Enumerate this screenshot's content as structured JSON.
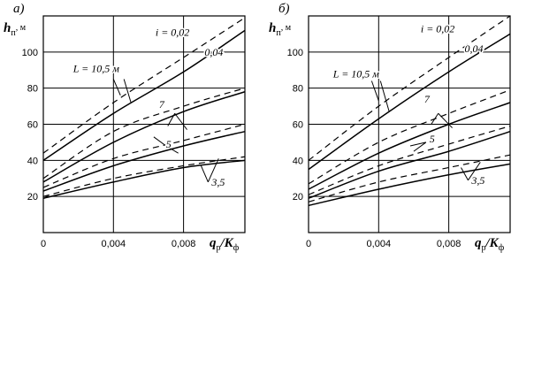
{
  "chart_data": [
    {
      "type": "line",
      "panel_label": "а)",
      "ylabel": {
        "main": "h",
        "sub": "п",
        "unit": ", м"
      },
      "xlabel": {
        "q": "q",
        "q_sub": "р",
        "k": "/K",
        "k_sub": "ф"
      },
      "xlim": [
        0,
        0.0115
      ],
      "ylim": [
        0,
        120
      ],
      "x_ticks": [
        "0",
        "0,004",
        "0,008"
      ],
      "x_tick_values": [
        0,
        0.004,
        0.008
      ],
      "y_ticks": [
        "20",
        "40",
        "60",
        "80",
        "100"
      ],
      "y_tick_values": [
        20,
        40,
        60,
        80,
        100
      ],
      "grid": true,
      "series": [
        {
          "style": "dashed",
          "points": [
            [
              0,
              44
            ],
            [
              0.004,
              72
            ],
            [
              0.008,
              97
            ],
            [
              0.0115,
              119
            ]
          ]
        },
        {
          "style": "solid",
          "points": [
            [
              0,
              40
            ],
            [
              0.004,
              66
            ],
            [
              0.008,
              89
            ],
            [
              0.0115,
              112
            ]
          ]
        },
        {
          "style": "dashed",
          "points": [
            [
              0,
              30
            ],
            [
              0.004,
              56
            ],
            [
              0.008,
              70
            ],
            [
              0.0115,
              80
            ]
          ]
        },
        {
          "style": "solid",
          "points": [
            [
              0,
              28
            ],
            [
              0.004,
              50
            ],
            [
              0.008,
              67
            ],
            [
              0.0115,
              78
            ]
          ]
        },
        {
          "style": "dashed",
          "points": [
            [
              0,
              25
            ],
            [
              0.004,
              41
            ],
            [
              0.008,
              51
            ],
            [
              0.0115,
              60
            ]
          ]
        },
        {
          "style": "solid",
          "points": [
            [
              0,
              23
            ],
            [
              0.004,
              37
            ],
            [
              0.008,
              48
            ],
            [
              0.0115,
              56
            ]
          ]
        },
        {
          "style": "dashed",
          "points": [
            [
              0,
              20
            ],
            [
              0.004,
              30
            ],
            [
              0.008,
              37
            ],
            [
              0.0115,
              42
            ]
          ]
        },
        {
          "style": "solid",
          "points": [
            [
              0,
              19
            ],
            [
              0.004,
              28
            ],
            [
              0.008,
              36
            ],
            [
              0.0115,
              40
            ]
          ]
        }
      ],
      "annotations": [
        {
          "text": "i = 0,02",
          "x": 0.0064,
          "y": 109
        },
        {
          "text": "0,04",
          "x": 0.0092,
          "y": 98
        },
        {
          "text": "L = 10,5 м",
          "x": 0.0017,
          "y": 89
        },
        {
          "text": "7",
          "x": 0.0066,
          "y": 69
        },
        {
          "text": "5",
          "x": 0.007,
          "y": 47
        },
        {
          "text": "3,5",
          "x": 0.0096,
          "y": 26
        }
      ],
      "leaders": [
        {
          "from": [
            0.004,
            85
          ],
          "to": [
            0.0044,
            76
          ]
        },
        {
          "from": [
            0.0046,
            85
          ],
          "to": [
            0.005,
            72
          ]
        },
        {
          "from": [
            0.0075,
            66
          ],
          "to": [
            0.0071,
            59
          ]
        },
        {
          "from": [
            0.0075,
            66
          ],
          "to": [
            0.0082,
            57
          ]
        },
        {
          "from": [
            0.007,
            48
          ],
          "to": [
            0.0063,
            53
          ]
        },
        {
          "from": [
            0.007,
            48
          ],
          "to": [
            0.0077,
            44
          ]
        },
        {
          "from": [
            0.0094,
            28
          ],
          "to": [
            0.009,
            37
          ]
        },
        {
          "from": [
            0.0094,
            28
          ],
          "to": [
            0.01,
            41
          ]
        }
      ]
    },
    {
      "type": "line",
      "panel_label": "б)",
      "ylabel": {
        "main": "h",
        "sub": "п",
        "unit": ", м"
      },
      "xlabel": {
        "q": "q",
        "q_sub": "р",
        "k": "/K",
        "k_sub": "ф"
      },
      "xlim": [
        0,
        0.0115
      ],
      "ylim": [
        0,
        120
      ],
      "x_ticks": [
        "0",
        "0,004",
        "0,008"
      ],
      "x_tick_values": [
        0,
        0.004,
        0.008
      ],
      "y_ticks": [
        "20",
        "40",
        "60",
        "80",
        "100"
      ],
      "y_tick_values": [
        20,
        40,
        60,
        80,
        100
      ],
      "grid": true,
      "series": [
        {
          "style": "dashed",
          "points": [
            [
              0,
              40
            ],
            [
              0.004,
              70
            ],
            [
              0.008,
              97
            ],
            [
              0.0115,
              120
            ]
          ]
        },
        {
          "style": "solid",
          "points": [
            [
              0,
              35
            ],
            [
              0.004,
              63
            ],
            [
              0.008,
              89
            ],
            [
              0.0115,
              110
            ]
          ]
        },
        {
          "style": "dashed",
          "points": [
            [
              0,
              27
            ],
            [
              0.004,
              50
            ],
            [
              0.008,
              66
            ],
            [
              0.0115,
              79
            ]
          ]
        },
        {
          "style": "solid",
          "points": [
            [
              0,
              24
            ],
            [
              0.004,
              44
            ],
            [
              0.008,
              60
            ],
            [
              0.0115,
              72
            ]
          ]
        },
        {
          "style": "dashed",
          "points": [
            [
              0,
              21
            ],
            [
              0.004,
              37
            ],
            [
              0.008,
              49
            ],
            [
              0.0115,
              59
            ]
          ]
        },
        {
          "style": "solid",
          "points": [
            [
              0,
              19
            ],
            [
              0.004,
              34
            ],
            [
              0.008,
              45
            ],
            [
              0.0115,
              56
            ]
          ]
        },
        {
          "style": "dashed",
          "points": [
            [
              0,
              17
            ],
            [
              0.004,
              28
            ],
            [
              0.008,
              36
            ],
            [
              0.0115,
              43
            ]
          ]
        },
        {
          "style": "solid",
          "points": [
            [
              0,
              15
            ],
            [
              0.004,
              24
            ],
            [
              0.008,
              32
            ],
            [
              0.0115,
              38
            ]
          ]
        }
      ],
      "annotations": [
        {
          "text": "i = 0,02",
          "x": 0.0064,
          "y": 111
        },
        {
          "text": "0,04",
          "x": 0.0089,
          "y": 100
        },
        {
          "text": "L = 10,5 м",
          "x": 0.0014,
          "y": 86
        },
        {
          "text": "7",
          "x": 0.0066,
          "y": 72
        },
        {
          "text": "5",
          "x": 0.0069,
          "y": 50
        },
        {
          "text": "3,5",
          "x": 0.0093,
          "y": 27
        }
      ],
      "leaders": [
        {
          "from": [
            0.0036,
            84
          ],
          "to": [
            0.004,
            73
          ]
        },
        {
          "from": [
            0.0041,
            84
          ],
          "to": [
            0.0046,
            67
          ]
        },
        {
          "from": [
            0.0074,
            66
          ],
          "to": [
            0.007,
            60
          ]
        },
        {
          "from": [
            0.0074,
            66
          ],
          "to": [
            0.0082,
            58
          ]
        },
        {
          "from": [
            0.0067,
            50
          ],
          "to": [
            0.0058,
            48
          ]
        },
        {
          "from": [
            0.0067,
            50
          ],
          "to": [
            0.006,
            45
          ]
        },
        {
          "from": [
            0.0091,
            29
          ],
          "to": [
            0.0087,
            36
          ]
        },
        {
          "from": [
            0.0091,
            29
          ],
          "to": [
            0.0098,
            39
          ]
        }
      ]
    }
  ]
}
